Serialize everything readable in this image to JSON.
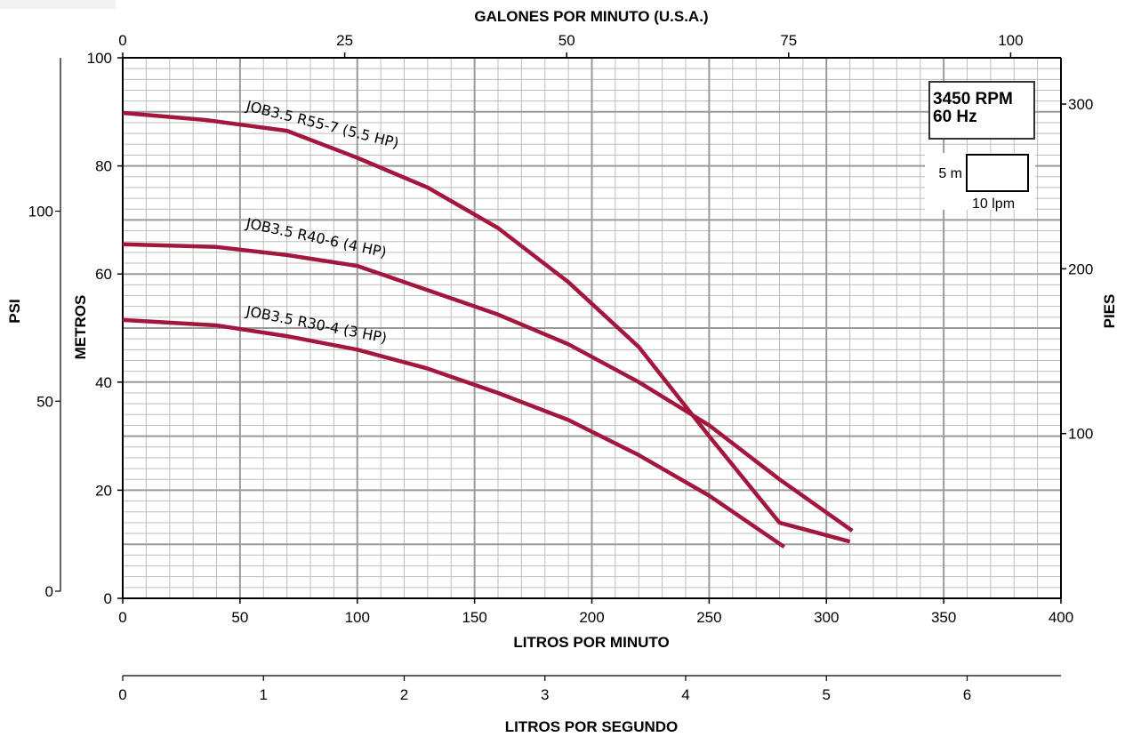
{
  "chart_data": {
    "type": "line",
    "title": "",
    "x_label_bottom": "LITROS POR MINUTO",
    "x_label_top": "GALONES POR MINUTO (U.S.A.)",
    "x_label_lps": "LITROS POR SEGUNDO",
    "y_label_left_inner": "METROS",
    "y_label_left_outer": "PSI",
    "y_label_right": "PIES",
    "xlim": [
      0,
      400
    ],
    "ylim": [
      0,
      100
    ],
    "x_ticks": [
      "0",
      "50",
      "100",
      "150",
      "200",
      "250",
      "300",
      "350",
      "400"
    ],
    "top_ticks": [
      "0",
      "25",
      "50",
      "75",
      "100"
    ],
    "lps_ticks": [
      "0",
      "1",
      "2",
      "3",
      "4",
      "5",
      "6"
    ],
    "metros_ticks": [
      "0",
      "20",
      "40",
      "60",
      "80",
      "100"
    ],
    "psi_ticks": [
      "0",
      "50",
      "100"
    ],
    "pies_ticks": [
      "100",
      "200",
      "300"
    ],
    "grid": true,
    "info_box": {
      "line1": "3450 RPM",
      "line2": "60 Hz"
    },
    "scale_box": {
      "vertical": "5 m",
      "horizontal": "10 lpm"
    },
    "series_color": "#a3173f",
    "series": [
      {
        "name": "JOB3.5 R55-7 (5.5 HP)",
        "x": [
          0,
          35,
          70,
          100,
          130,
          160,
          190,
          220,
          250,
          280,
          310
        ],
        "y": [
          89.8,
          88.5,
          86.5,
          81.5,
          76,
          68.5,
          58.5,
          46.5,
          30,
          14,
          10.5
        ]
      },
      {
        "name": "JOB3.5 R40-6 (4 HP)",
        "x": [
          0,
          40,
          70,
          100,
          130,
          160,
          190,
          220,
          250,
          280,
          311
        ],
        "y": [
          65.5,
          65,
          63.5,
          61.5,
          57,
          52.5,
          47,
          40,
          32,
          22,
          12.5
        ]
      },
      {
        "name": "JOB3.5 R30-4 (3 HP)",
        "x": [
          0,
          40,
          70,
          100,
          130,
          160,
          190,
          220,
          250,
          282
        ],
        "y": [
          51.5,
          50.5,
          48.5,
          46,
          42.5,
          38,
          33,
          26.5,
          19,
          9.5
        ]
      }
    ]
  }
}
